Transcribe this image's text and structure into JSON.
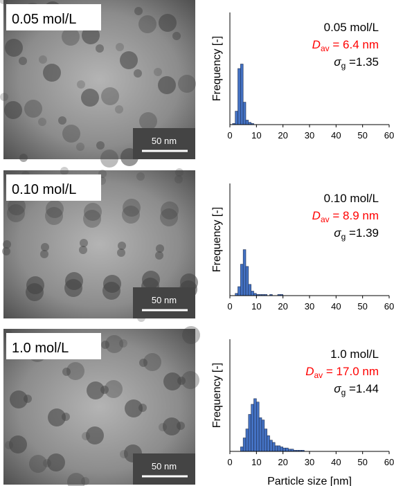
{
  "micrographs": [
    {
      "label": "0.05 mol/L",
      "scale_bar": "50 nm"
    },
    {
      "label": "0.10 mol/L",
      "scale_bar": "50 nm"
    },
    {
      "label": "1.0 mol/L",
      "scale_bar": "50 nm"
    }
  ],
  "chart_data": [
    {
      "type": "histogram",
      "y_label": "Frequency [-]",
      "color": "#4472c4",
      "annotations": [
        {
          "text": "0.05 mol/L",
          "color": "#000000"
        },
        {
          "symbol": "D",
          "subscript": "av",
          "text": " = 6.4 nm",
          "color": "#ff0000"
        },
        {
          "symbol": "σ",
          "subscript": "g",
          "text": " =1.35",
          "color": "#000000"
        }
      ],
      "bins": [
        1,
        2,
        3,
        4,
        5,
        6,
        7,
        8,
        9,
        10
      ],
      "values": [
        1,
        12,
        50,
        54,
        20,
        4,
        2,
        1,
        0
      ],
      "xlim": [
        0,
        60
      ],
      "xticks": [
        0,
        10,
        20,
        30,
        40,
        50,
        60
      ],
      "ylim": [
        0,
        100
      ]
    },
    {
      "type": "histogram",
      "y_label": "Frequency [-]",
      "color": "#4472c4",
      "annotations": [
        {
          "text": "0.10 mol/L",
          "color": "#000000"
        },
        {
          "symbol": "D",
          "subscript": "av",
          "text": " = 8.9 nm",
          "color": "#ff0000"
        },
        {
          "symbol": "σ",
          "subscript": "g",
          "text": " =1.39",
          "color": "#000000"
        }
      ],
      "bins": [
        2,
        3,
        4,
        5,
        6,
        7,
        8,
        9,
        10,
        11,
        12,
        13,
        14,
        15,
        16,
        17,
        18,
        19,
        20
      ],
      "values": [
        2,
        8,
        28,
        41,
        26,
        10,
        4,
        2,
        1,
        1,
        1,
        1,
        0,
        1,
        0,
        0,
        1,
        1
      ],
      "xlim": [
        0,
        60
      ],
      "xticks": [
        0,
        10,
        20,
        30,
        40,
        50,
        60
      ],
      "ylim": [
        0,
        100
      ]
    },
    {
      "type": "histogram",
      "y_label": "Frequency [-]",
      "x_label": "Particle size [nm]",
      "color": "#4472c4",
      "annotations": [
        {
          "text": "1.0 mol/L",
          "color": "#000000"
        },
        {
          "symbol": "D",
          "subscript": "av",
          "text": " = 17.0 nm",
          "color": "#ff0000"
        },
        {
          "symbol": "σ",
          "subscript": "g",
          "text": " =1.44",
          "color": "#000000"
        }
      ],
      "bins": [
        4,
        5,
        6,
        7,
        8,
        9,
        10,
        11,
        12,
        13,
        14,
        15,
        16,
        17,
        18,
        19,
        20,
        21,
        22,
        23,
        24,
        25,
        26,
        27,
        28
      ],
      "values": [
        4,
        12,
        20,
        33,
        42,
        47,
        44,
        30,
        28,
        20,
        14,
        10,
        8,
        5,
        5,
        4,
        3,
        3,
        2,
        2,
        1,
        1,
        1,
        1
      ],
      "xlim": [
        0,
        60
      ],
      "xticks": [
        0,
        10,
        20,
        30,
        40,
        50,
        60
      ],
      "ylim": [
        0,
        100
      ]
    }
  ]
}
